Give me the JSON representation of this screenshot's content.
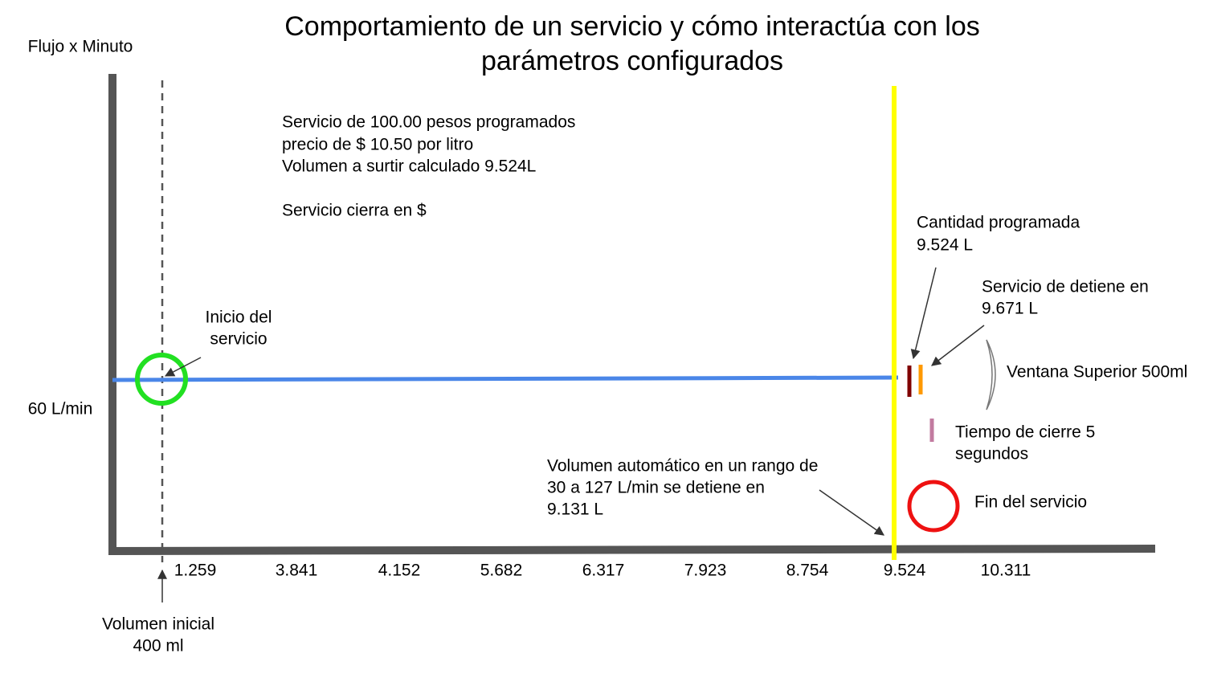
{
  "title": [
    "Comportamiento de un servicio y cómo interactúa con los",
    "parámetros configurados"
  ],
  "y_axis_label": "Flujo x Minuto",
  "flow_label": "60 L/min",
  "info": [
    "Servicio de 100.00 pesos programados",
    "precio de $ 10.50 por litro",
    "Volumen a surtir calculado 9.524L",
    "Servicio cierra en $"
  ],
  "x_labels": [
    "1.259",
    "3.841",
    "4.152",
    "5.682",
    "6.317",
    "7.923",
    "8.754",
    "9.524",
    "10.311"
  ],
  "annotations": {
    "start": [
      "Inicio del",
      "servicio"
    ],
    "initial_volume": [
      "Volumen inicial",
      "400 ml"
    ],
    "programmed": [
      "Cantidad programada",
      "9.524 L"
    ],
    "stops": [
      "Servicio de detiene en",
      "9.671 L"
    ],
    "window": "Ventana Superior 500ml",
    "close_time": [
      "Tiempo de cierre 5",
      "segundos"
    ],
    "auto_volume": [
      "Volumen automático en un rango de",
      "30 a 127 L/min se detiene en",
      "9.131 L"
    ],
    "end": "Fin del servicio"
  }
}
